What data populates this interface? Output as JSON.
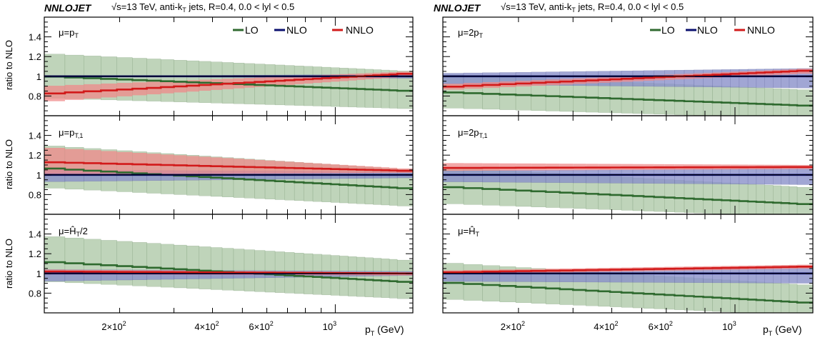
{
  "colors": {
    "lo": "#2f6a2f",
    "nlo": "#0a0f6e",
    "nnlo": "#d21a1a",
    "lo_band": "#a9c6a3",
    "nlo_band": "#8a90c9",
    "nnlo_band": "#ef8a8a"
  },
  "columns": [
    {
      "brand": "NNLOJET",
      "header": "√s=13 TeV, anti-kT jets, R=0.4, 0.0 < lyl < 0.5",
      "header_parts": {
        "sqrt": "√",
        "s_tev": "s=13 TeV, anti-k",
        "sub": "T",
        "rest": " jets, R=0.4, 0.0 < lyl < 0.5"
      },
      "legend": [
        {
          "label": "LO",
          "key": "lo"
        },
        {
          "label": "NLO",
          "key": "nlo"
        },
        {
          "label": "NNLO",
          "key": "nnlo"
        }
      ],
      "xlabel": "pT (GeV)",
      "xlabel_parts": {
        "main": "p",
        "sub": "T",
        "unit": " (GeV)"
      },
      "panels": [
        {
          "scale_label": {
            "pre": "μ=p",
            "sub": "T",
            "post": ""
          },
          "ylabel": "ratio to NLO"
        },
        {
          "scale_label": {
            "pre": "μ=p",
            "sub": "T,1",
            "post": ""
          },
          "ylabel": "ratio to NLO"
        },
        {
          "scale_label": {
            "pre": "μ=Ĥ",
            "sub": "T",
            "post": "/2"
          },
          "ylabel": "ratio to NLO"
        }
      ]
    },
    {
      "brand": "NNLOJET",
      "header": "√s=13 TeV, anti-kT jets, R=0.4, 0.0 < lyl < 0.5",
      "header_parts": {
        "sqrt": "√",
        "s_tev": "s=13 TeV, anti-k",
        "sub": "T",
        "rest": " jets, R=0.4, 0.0 < lyl < 0.5"
      },
      "legend": [
        {
          "label": "LO",
          "key": "lo"
        },
        {
          "label": "NLO",
          "key": "nlo"
        },
        {
          "label": "NNLO",
          "key": "nnlo"
        }
      ],
      "xlabel": "pT (GeV)",
      "xlabel_parts": {
        "main": "p",
        "sub": "T",
        "unit": " (GeV)"
      },
      "panels": [
        {
          "scale_label": {
            "pre": "μ=2p",
            "sub": "T",
            "post": ""
          },
          "ylabel": ""
        },
        {
          "scale_label": {
            "pre": "μ=2p",
            "sub": "T,1",
            "post": ""
          },
          "ylabel": ""
        },
        {
          "scale_label": {
            "pre": "μ=Ĥ",
            "sub": "T",
            "post": ""
          },
          "ylabel": ""
        }
      ]
    }
  ],
  "chart_data": {
    "type": "line",
    "x_axis": {
      "scale": "log",
      "range": [
        114,
        1784
      ],
      "unit": "GeV",
      "tick_labels": [
        {
          "value": 200,
          "label": "2×10",
          "exp": "2"
        },
        {
          "value": 400,
          "label": "4×10",
          "exp": "2"
        },
        {
          "value": 600,
          "label": "6×10",
          "exp": "2"
        },
        {
          "value": 1000,
          "label": "10",
          "exp": "3"
        }
      ]
    },
    "y_axis": {
      "range": [
        0.6,
        1.6
      ],
      "ticks": [
        "0.8",
        "1",
        "1.2",
        "1.4"
      ]
    },
    "bin_edges": [
      114,
      133,
      153,
      174,
      196,
      220,
      245,
      272,
      300,
      330,
      362,
      395,
      430,
      468,
      507,
      548,
      592,
      638,
      686,
      737,
      790,
      846,
      905,
      967,
      1032,
      1101,
      1172,
      1248,
      1327,
      1410,
      1497,
      1588,
      1784
    ],
    "panels": [
      {
        "column": 0,
        "row": 0,
        "scale": "μ=pT",
        "lo": {
          "center": [
            1.0,
            0.85
          ],
          "up": [
            1.23,
            1.05
          ],
          "down": [
            0.78,
            0.67
          ]
        },
        "nlo": {
          "center": [
            1.0,
            1.0
          ],
          "up": [
            1.0,
            1.02
          ],
          "down": [
            1.0,
            0.98
          ]
        },
        "nnlo": {
          "center": [
            0.82,
            1.03
          ],
          "up": [
            0.9,
            1.05
          ],
          "down": [
            0.74,
            1.0
          ]
        }
      },
      {
        "column": 0,
        "row": 1,
        "scale": "μ=pT,1",
        "lo": {
          "center": [
            1.07,
            0.86
          ],
          "up": [
            1.3,
            1.05
          ],
          "down": [
            0.87,
            0.68
          ]
        },
        "nlo": {
          "center": [
            1.0,
            1.0
          ],
          "up": [
            1.05,
            1.03
          ],
          "down": [
            0.93,
            0.97
          ]
        },
        "nnlo": {
          "center": [
            1.13,
            1.04
          ],
          "up": [
            1.28,
            1.06
          ],
          "down": [
            1.0,
            1.02
          ]
        }
      },
      {
        "column": 0,
        "row": 2,
        "scale": "μ=HT/2",
        "lo": {
          "center": [
            1.12,
            0.91
          ],
          "up": [
            1.38,
            1.13
          ],
          "down": [
            0.92,
            0.74
          ]
        },
        "nlo": {
          "center": [
            1.0,
            1.0
          ],
          "up": [
            1.04,
            1.02
          ],
          "down": [
            0.92,
            0.98
          ]
        },
        "nnlo": {
          "center": [
            1.02,
            1.0
          ],
          "up": [
            1.04,
            1.01
          ],
          "down": [
            0.99,
            0.98
          ]
        }
      },
      {
        "column": 1,
        "row": 0,
        "scale": "μ=2pT",
        "lo": {
          "center": [
            0.84,
            0.7
          ],
          "up": [
            1.02,
            0.86
          ],
          "down": [
            0.68,
            0.57
          ]
        },
        "nlo": {
          "center": [
            1.0,
            1.0
          ],
          "up": [
            1.03,
            1.08
          ],
          "down": [
            0.92,
            0.88
          ]
        },
        "nnlo": {
          "center": [
            0.89,
            1.06
          ],
          "up": [
            0.92,
            1.08
          ],
          "down": [
            0.86,
            1.03
          ]
        }
      },
      {
        "column": 1,
        "row": 1,
        "scale": "μ=2pT,1",
        "lo": {
          "center": [
            0.88,
            0.7
          ],
          "up": [
            1.08,
            0.87
          ],
          "down": [
            0.71,
            0.57
          ]
        },
        "nlo": {
          "center": [
            1.0,
            1.0
          ],
          "up": [
            1.04,
            1.07
          ],
          "down": [
            0.93,
            0.9
          ]
        },
        "nnlo": {
          "center": [
            1.07,
            1.08
          ],
          "up": [
            1.12,
            1.1
          ],
          "down": [
            1.04,
            1.06
          ]
        }
      },
      {
        "column": 1,
        "row": 2,
        "scale": "μ=HT",
        "lo": {
          "center": [
            0.91,
            0.7
          ],
          "up": [
            1.11,
            0.88
          ],
          "down": [
            0.74,
            0.57
          ]
        },
        "nlo": {
          "center": [
            1.0,
            1.0
          ],
          "up": [
            1.02,
            1.06
          ],
          "down": [
            0.92,
            0.9
          ]
        },
        "nnlo": {
          "center": [
            1.01,
            1.07
          ],
          "up": [
            1.03,
            1.09
          ],
          "down": [
            0.99,
            1.05
          ]
        }
      }
    ]
  }
}
